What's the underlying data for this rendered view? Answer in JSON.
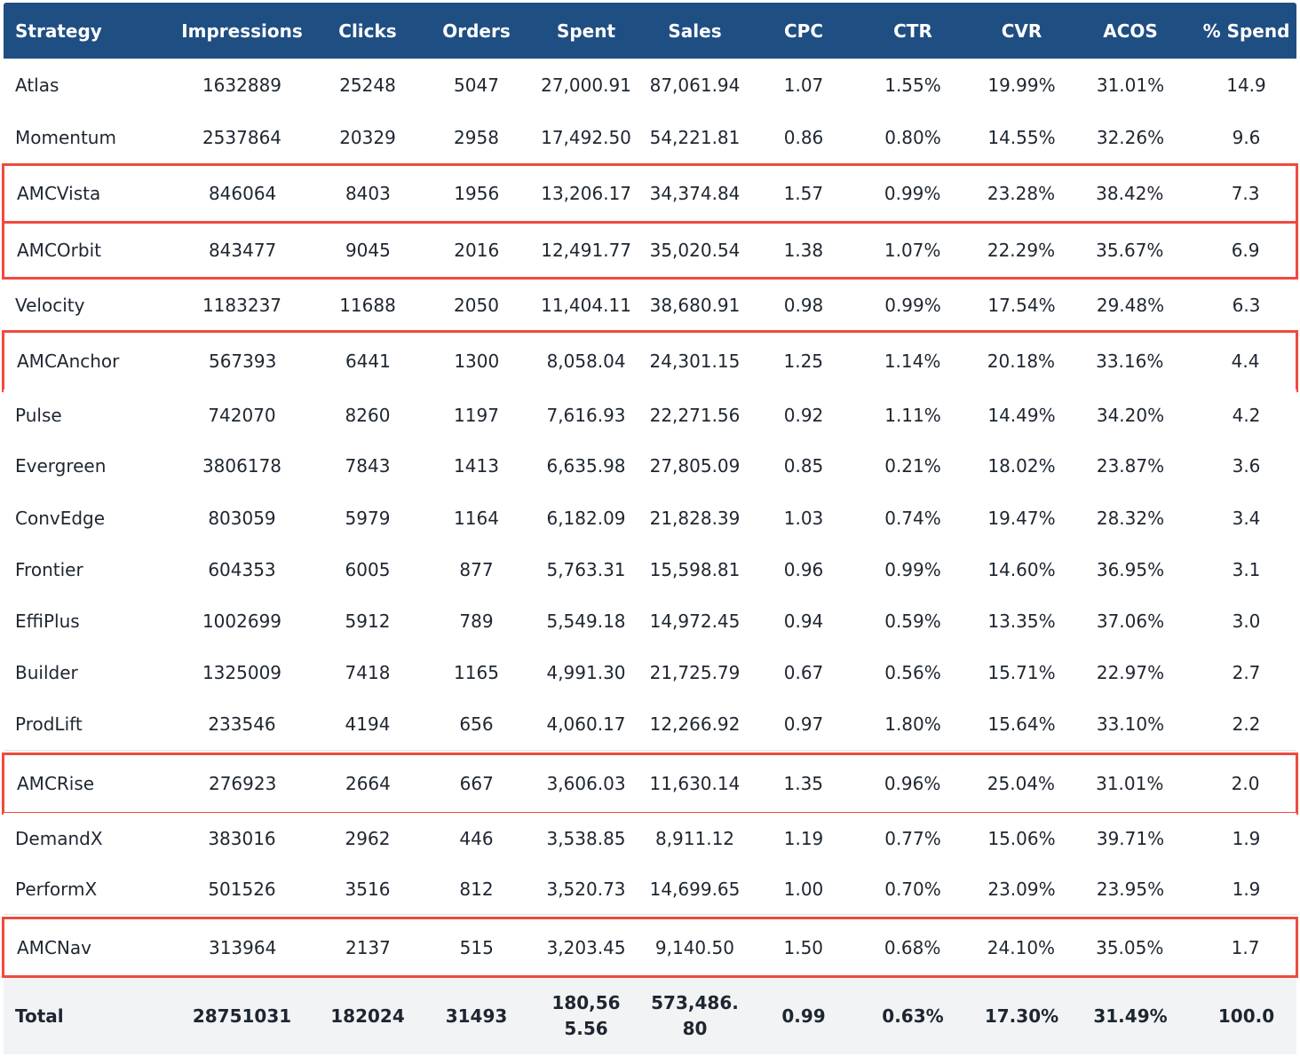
{
  "table": {
    "headers": [
      "Strategy",
      "Impressions",
      "Clicks",
      "Orders",
      "Spent",
      "Sales",
      "CPC",
      "CTR",
      "CVR",
      "ACOS",
      "% Spend"
    ],
    "rows": [
      {
        "cells": [
          "Atlas",
          "1632889",
          "25248",
          "5047",
          "27,000.91",
          "87,061.94",
          "1.07",
          "1.55%",
          "19.99%",
          "31.01%",
          "14.9"
        ],
        "highlighted": false
      },
      {
        "cells": [
          "Momentum",
          "2537864",
          "20329",
          "2958",
          "17,492.50",
          "54,221.81",
          "0.86",
          "0.80%",
          "14.55%",
          "32.26%",
          "9.6"
        ],
        "highlighted": false
      },
      {
        "cells": [
          "AMCVista",
          "846064",
          "8403",
          "1956",
          "13,206.17",
          "34,374.84",
          "1.57",
          "0.99%",
          "23.28%",
          "38.42%",
          "7.3"
        ],
        "highlighted": true
      },
      {
        "cells": [
          "AMCOrbit",
          "843477",
          "9045",
          "2016",
          "12,491.77",
          "35,020.54",
          "1.38",
          "1.07%",
          "22.29%",
          "35.67%",
          "6.9"
        ],
        "highlighted": true
      },
      {
        "cells": [
          "Velocity",
          "1183237",
          "11688",
          "2050",
          "11,404.11",
          "38,680.91",
          "0.98",
          "0.99%",
          "17.54%",
          "29.48%",
          "6.3"
        ],
        "highlighted": false
      },
      {
        "cells": [
          "AMCAnchor",
          "567393",
          "6441",
          "1300",
          "8,058.04",
          "24,301.15",
          "1.25",
          "1.14%",
          "20.18%",
          "33.16%",
          "4.4"
        ],
        "highlighted": true
      },
      {
        "cells": [
          "Pulse",
          "742070",
          "8260",
          "1197",
          "7,616.93",
          "22,271.56",
          "0.92",
          "1.11%",
          "14.49%",
          "34.20%",
          "4.2"
        ],
        "highlighted": false
      },
      {
        "cells": [
          "Evergreen",
          "3806178",
          "7843",
          "1413",
          "6,635.98",
          "27,805.09",
          "0.85",
          "0.21%",
          "18.02%",
          "23.87%",
          "3.6"
        ],
        "highlighted": false
      },
      {
        "cells": [
          "ConvEdge",
          "803059",
          "5979",
          "1164",
          "6,182.09",
          "21,828.39",
          "1.03",
          "0.74%",
          "19.47%",
          "28.32%",
          "3.4"
        ],
        "highlighted": false
      },
      {
        "cells": [
          "Frontier",
          "604353",
          "6005",
          "877",
          "5,763.31",
          "15,598.81",
          "0.96",
          "0.99%",
          "14.60%",
          "36.95%",
          "3.1"
        ],
        "highlighted": false
      },
      {
        "cells": [
          "EffiPlus",
          "1002699",
          "5912",
          "789",
          "5,549.18",
          "14,972.45",
          "0.94",
          "0.59%",
          "13.35%",
          "37.06%",
          "3.0"
        ],
        "highlighted": false
      },
      {
        "cells": [
          "Builder",
          "1325009",
          "7418",
          "1165",
          "4,991.30",
          "21,725.79",
          "0.67",
          "0.56%",
          "15.71%",
          "22.97%",
          "2.7"
        ],
        "highlighted": false
      },
      {
        "cells": [
          "ProdLift",
          "233546",
          "4194",
          "656",
          "4,060.17",
          "12,266.92",
          "0.97",
          "1.80%",
          "15.64%",
          "33.10%",
          "2.2"
        ],
        "highlighted": false
      },
      {
        "cells": [
          "AMCRise",
          "276923",
          "2664",
          "667",
          "3,606.03",
          "11,630.14",
          "1.35",
          "0.96%",
          "25.04%",
          "31.01%",
          "2.0"
        ],
        "highlighted": true
      },
      {
        "cells": [
          "DemandX",
          "383016",
          "2962",
          "446",
          "3,538.85",
          "8,911.12",
          "1.19",
          "0.77%",
          "15.06%",
          "39.71%",
          "1.9"
        ],
        "highlighted": false
      },
      {
        "cells": [
          "PerformX",
          "501526",
          "3516",
          "812",
          "3,520.73",
          "14,699.65",
          "1.00",
          "0.70%",
          "23.09%",
          "23.95%",
          "1.9"
        ],
        "highlighted": false
      },
      {
        "cells": [
          "AMCNav",
          "313964",
          "2137",
          "515",
          "3,203.45",
          "9,140.50",
          "1.50",
          "0.68%",
          "24.10%",
          "35.05%",
          "1.7"
        ],
        "highlighted": true
      }
    ],
    "total": [
      "Total",
      "28751031",
      "182024",
      "31493",
      "180,565.56",
      "573,486.80",
      "0.99",
      "0.63%",
      "17.30%",
      "31.49%",
      "100.0"
    ]
  },
  "colors": {
    "header_bg": "#1f4e82",
    "highlight_border": "#f04a3e",
    "total_bg": "#f2f3f5"
  }
}
